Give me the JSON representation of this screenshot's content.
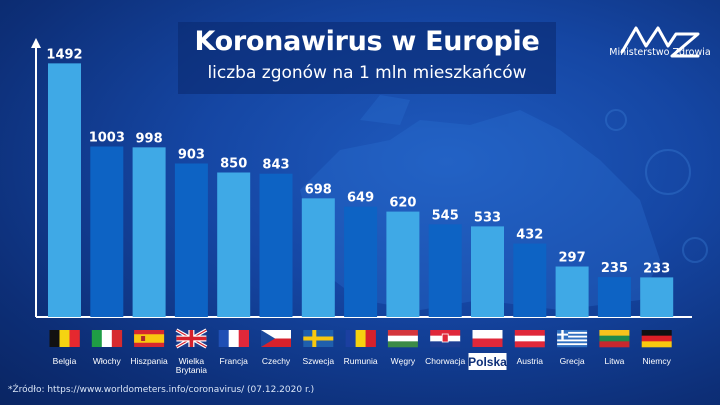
{
  "header": {
    "title": "Koronawirus w Europie",
    "subtitle": "liczba zgonów na 1 mln mieszkańców"
  },
  "logo": {
    "name": "mz-logo-icon",
    "text": "Ministerstwo Zdrowia"
  },
  "source": "*Źródło: https://www.worldometers.info/coronavirus/ (07.12.2020 r.)",
  "colors": {
    "bar_light": "#3fa9e6",
    "bar_dark": "#0d63c4",
    "label_text": "#ffffff",
    "highlight_bg": "#ffffff",
    "highlight_text": "#0d2f78"
  },
  "chart_data": {
    "type": "bar",
    "categories": [
      "Belgia",
      "Włochy",
      "Hiszpania",
      "Wielka Brytania",
      "Francja",
      "Czechy",
      "Szwecja",
      "Rumunia",
      "Węgry",
      "Chorwacja",
      "Polska",
      "Austria",
      "Grecja",
      "Litwa",
      "Niemcy"
    ],
    "values": [
      1492,
      1003,
      998,
      903,
      850,
      843,
      698,
      649,
      620,
      545,
      533,
      432,
      297,
      235,
      233
    ],
    "shades": [
      "light",
      "dark",
      "light",
      "dark",
      "light",
      "dark",
      "light",
      "dark",
      "light",
      "dark",
      "light",
      "dark",
      "light",
      "dark",
      "light"
    ],
    "highlight": "Polska",
    "flags": [
      "belgium-flag-icon",
      "italy-flag-icon",
      "spain-flag-icon",
      "uk-flag-icon",
      "france-flag-icon",
      "czechia-flag-icon",
      "sweden-flag-icon",
      "romania-flag-icon",
      "hungary-flag-icon",
      "croatia-flag-icon",
      "poland-flag-icon",
      "austria-flag-icon",
      "greece-flag-icon",
      "lithuania-flag-icon",
      "germany-flag-icon"
    ],
    "title": "Koronawirus w Europie",
    "subtitle": "liczba zgonów na 1 mln mieszkańców",
    "xlabel": "",
    "ylabel": "",
    "ylim": [
      0,
      1500
    ],
    "grid": false,
    "legend": "none"
  }
}
